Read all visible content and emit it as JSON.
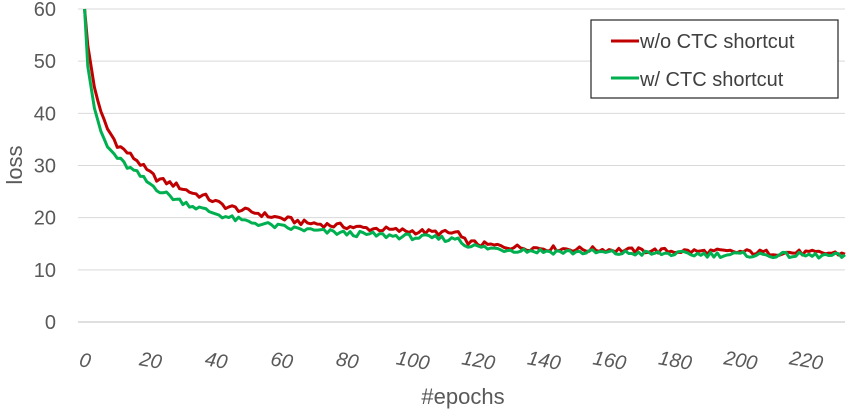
{
  "chart_data": {
    "type": "line",
    "title": "",
    "xlabel": "#epochs",
    "ylabel": "loss",
    "xlim": [
      0,
      234
    ],
    "ylim": [
      0,
      60
    ],
    "x_ticks": [
      0,
      20,
      40,
      60,
      80,
      100,
      120,
      140,
      160,
      180,
      200,
      220
    ],
    "y_ticks": [
      0,
      10,
      20,
      30,
      40,
      50,
      60
    ],
    "grid": "horizontal",
    "legend_position": "top-right",
    "series": [
      {
        "name": "w/o CTC shortcut",
        "color": "#c00000",
        "points": [
          [
            2,
            60
          ],
          [
            3,
            53
          ],
          [
            5,
            45
          ],
          [
            7,
            40
          ],
          [
            9,
            37
          ],
          [
            12,
            34
          ],
          [
            15,
            32.5
          ],
          [
            18,
            31
          ],
          [
            21,
            29
          ],
          [
            24,
            27.5
          ],
          [
            27,
            26.8
          ],
          [
            30,
            26.2
          ],
          [
            33,
            25.3
          ],
          [
            36,
            24.5
          ],
          [
            39,
            24
          ],
          [
            42,
            23
          ],
          [
            45,
            22.2
          ],
          [
            48,
            21.8
          ],
          [
            51,
            21.3
          ],
          [
            54,
            21
          ],
          [
            57,
            20.5
          ],
          [
            60,
            20.1
          ],
          [
            63,
            19.8
          ],
          [
            66,
            19.4
          ],
          [
            69,
            19
          ],
          [
            72,
            18.9
          ],
          [
            75,
            18.7
          ],
          [
            78,
            18.5
          ],
          [
            81,
            18.4
          ],
          [
            84,
            18.2
          ],
          [
            87,
            18
          ],
          [
            90,
            17.9
          ],
          [
            93,
            17.8
          ],
          [
            96,
            17.6
          ],
          [
            99,
            17.5
          ],
          [
            102,
            17.4
          ],
          [
            105,
            17.3
          ],
          [
            108,
            17.2
          ],
          [
            111,
            17.1
          ],
          [
            114,
            17
          ],
          [
            116,
            17.2
          ],
          [
            117,
            15.8
          ],
          [
            120,
            15.2
          ],
          [
            123,
            14.9
          ],
          [
            126,
            14.7
          ],
          [
            130,
            14.5
          ],
          [
            135,
            14.3
          ],
          [
            140,
            14.2
          ],
          [
            145,
            14.1
          ],
          [
            150,
            14
          ],
          [
            155,
            13.9
          ],
          [
            160,
            13.9
          ],
          [
            165,
            13.8
          ],
          [
            170,
            13.7
          ],
          [
            175,
            13.7
          ],
          [
            180,
            13.6
          ],
          [
            185,
            13.6
          ],
          [
            190,
            13.5
          ],
          [
            195,
            13.5
          ],
          [
            200,
            13.4
          ],
          [
            205,
            13.4
          ],
          [
            210,
            13.3
          ],
          [
            215,
            13.3
          ],
          [
            220,
            13.3
          ],
          [
            225,
            13.2
          ],
          [
            230,
            13.2
          ],
          [
            234,
            13.1
          ]
        ]
      },
      {
        "name": "w/ CTC shortcut",
        "color": "#00b050",
        "points": [
          [
            2,
            60
          ],
          [
            3,
            49
          ],
          [
            5,
            41
          ],
          [
            7,
            36.5
          ],
          [
            9,
            33.5
          ],
          [
            12,
            31.5
          ],
          [
            15,
            29.8
          ],
          [
            18,
            28.5
          ],
          [
            21,
            26.9
          ],
          [
            24,
            25.6
          ],
          [
            27,
            24.5
          ],
          [
            30,
            23.5
          ],
          [
            33,
            22.8
          ],
          [
            36,
            22
          ],
          [
            39,
            21.4
          ],
          [
            42,
            20.8
          ],
          [
            45,
            20.2
          ],
          [
            48,
            19.7
          ],
          [
            51,
            19.3
          ],
          [
            54,
            19
          ],
          [
            57,
            18.7
          ],
          [
            60,
            18.4
          ],
          [
            63,
            18.1
          ],
          [
            66,
            17.9
          ],
          [
            69,
            17.7
          ],
          [
            72,
            17.5
          ],
          [
            75,
            17.3
          ],
          [
            78,
            17.2
          ],
          [
            81,
            17
          ],
          [
            84,
            16.9
          ],
          [
            87,
            16.8
          ],
          [
            90,
            16.7
          ],
          [
            93,
            16.6
          ],
          [
            96,
            16.5
          ],
          [
            99,
            16.4
          ],
          [
            102,
            16.3
          ],
          [
            105,
            16.2
          ],
          [
            108,
            16.1
          ],
          [
            111,
            16
          ],
          [
            114,
            15.8
          ],
          [
            116,
            16.3
          ],
          [
            117,
            15.2
          ],
          [
            120,
            14.6
          ],
          [
            123,
            14.3
          ],
          [
            126,
            14.1
          ],
          [
            130,
            13.9
          ],
          [
            135,
            13.8
          ],
          [
            140,
            13.6
          ],
          [
            145,
            13.5
          ],
          [
            150,
            13.4
          ],
          [
            155,
            13.4
          ],
          [
            160,
            13.3
          ],
          [
            165,
            13.2
          ],
          [
            170,
            13.2
          ],
          [
            175,
            13.1
          ],
          [
            180,
            13.1
          ],
          [
            185,
            13
          ],
          [
            190,
            13
          ],
          [
            195,
            12.9
          ],
          [
            200,
            12.9
          ],
          [
            205,
            12.9
          ],
          [
            210,
            12.8
          ],
          [
            215,
            12.8
          ],
          [
            220,
            12.8
          ],
          [
            225,
            12.7
          ],
          [
            230,
            12.7
          ],
          [
            234,
            12.6
          ]
        ]
      }
    ]
  }
}
